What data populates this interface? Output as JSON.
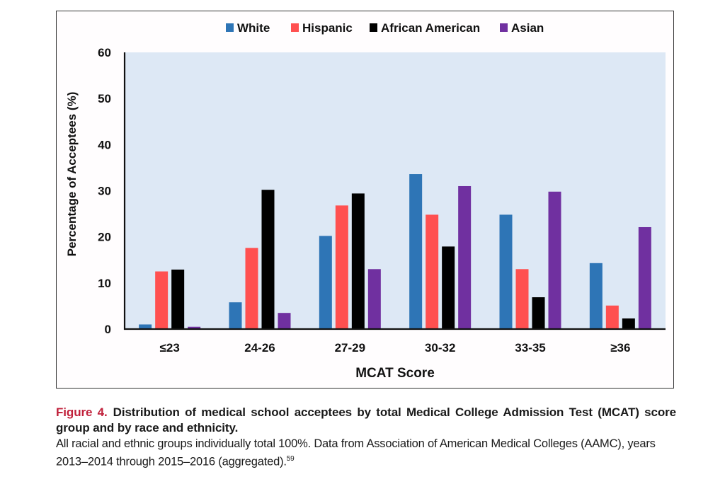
{
  "chart_data": {
    "type": "bar",
    "title": "",
    "xlabel": "MCAT Score",
    "ylabel": "Percentage of Acceptees (%)",
    "ylim": [
      0,
      60
    ],
    "yticks": [
      0,
      10,
      20,
      30,
      40,
      50,
      60
    ],
    "grid": false,
    "legend_position": "top-center",
    "categories": [
      "≤23",
      "24-26",
      "27-29",
      "30-32",
      "33-35",
      "≥36"
    ],
    "series": [
      {
        "name": "White",
        "color": "#2e75b6",
        "values": [
          1.0,
          5.8,
          20.2,
          33.6,
          24.8,
          14.3
        ]
      },
      {
        "name": "Hispanic",
        "color": "#ff5050",
        "values": [
          12.5,
          17.6,
          26.8,
          24.8,
          13.0,
          5.1
        ]
      },
      {
        "name": "African American",
        "color": "#000000",
        "values": [
          12.9,
          30.2,
          29.4,
          17.9,
          6.9,
          2.3
        ]
      },
      {
        "name": "Asian",
        "color": "#7030a0",
        "values": [
          0.5,
          3.5,
          13.0,
          31.0,
          29.8,
          22.1
        ]
      }
    ],
    "plot_background": "#dde8f5"
  },
  "caption": {
    "figure_label": "Figure 4.",
    "title": "Distribution of medical school acceptees by total Medical College Admission Test (MCAT) score group and by race and ethnicity.",
    "body": "All racial and ethnic groups individually total 100%. Data from Association of American Medical Colleges (AAMC), years 2013–2014 through 2015–2016 (aggregated).",
    "reference": "59"
  }
}
